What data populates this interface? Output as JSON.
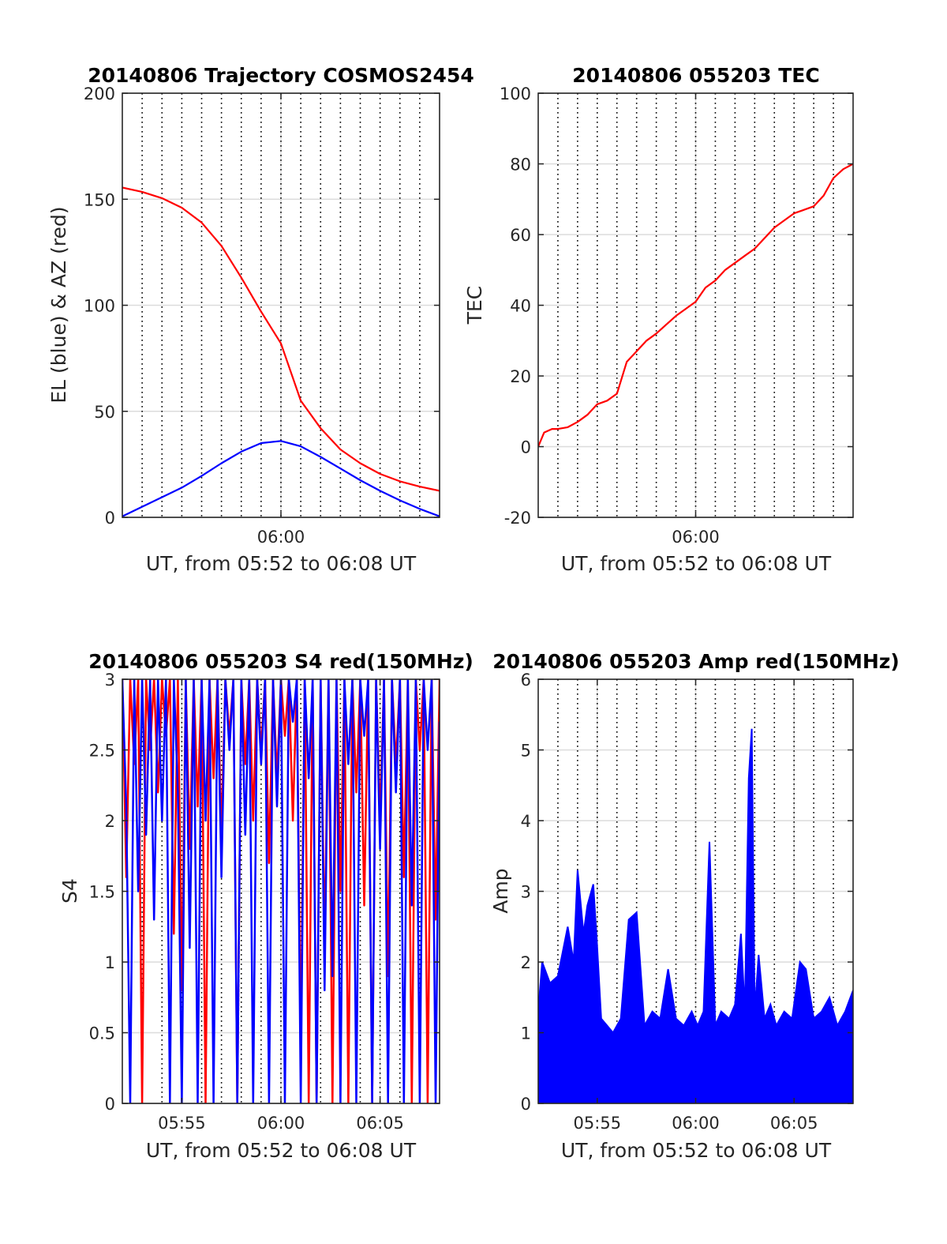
{
  "chart_data": [
    {
      "id": "trajectory",
      "type": "line",
      "title": "20140806 Trajectory COSMOS2454",
      "xlabel": "UT, from 05:52 to 06:08 UT",
      "ylabel": "EL (blue) & AZ (red)",
      "xlim": [
        352,
        368
      ],
      "ylim": [
        0,
        200
      ],
      "xticks": [
        {
          "value": 360,
          "label": "06:00"
        }
      ],
      "yticks": [
        {
          "value": 0,
          "label": "0"
        },
        {
          "value": 50,
          "label": "50"
        },
        {
          "value": 100,
          "label": "100"
        },
        {
          "value": 150,
          "label": "150"
        },
        {
          "value": 200,
          "label": "200"
        }
      ],
      "minute_gridlines": [
        353,
        354,
        355,
        356,
        357,
        358,
        359,
        360,
        361,
        362,
        363,
        364,
        365,
        366,
        367
      ],
      "grid": true,
      "series": [
        {
          "name": "AZ",
          "color": "#ff0000",
          "x": [
            352,
            353,
            354,
            355,
            356,
            357,
            358,
            359,
            360,
            361,
            362,
            363,
            364,
            365,
            366,
            367,
            368
          ],
          "values": [
            155.5,
            153.5,
            150.5,
            146,
            139,
            128,
            113,
            97,
            82,
            55,
            42,
            32,
            25.5,
            20.5,
            17,
            14.5,
            12.5
          ]
        },
        {
          "name": "EL",
          "color": "#0000ff",
          "x": [
            352,
            353,
            354,
            355,
            356,
            357,
            358,
            359,
            360,
            361,
            362,
            363,
            364,
            365,
            366,
            367,
            368
          ],
          "values": [
            0.5,
            5,
            9.5,
            14,
            19.5,
            25.5,
            31,
            35,
            36,
            33.5,
            28.5,
            23,
            17.5,
            12.5,
            8,
            4,
            0.5
          ]
        }
      ]
    },
    {
      "id": "tec",
      "type": "line",
      "title": "20140806 055203 TEC",
      "xlabel": "UT, from 05:52 to 06:08 UT",
      "ylabel": "TEC",
      "xlim": [
        352,
        368
      ],
      "ylim": [
        -20,
        100
      ],
      "xticks": [
        {
          "value": 360,
          "label": "06:00"
        }
      ],
      "yticks": [
        {
          "value": -20,
          "label": "-20"
        },
        {
          "value": 0,
          "label": "0"
        },
        {
          "value": 20,
          "label": "20"
        },
        {
          "value": 40,
          "label": "40"
        },
        {
          "value": 60,
          "label": "60"
        },
        {
          "value": 80,
          "label": "80"
        },
        {
          "value": 100,
          "label": "100"
        }
      ],
      "minute_gridlines": [
        353,
        354,
        355,
        356,
        357,
        358,
        359,
        360,
        361,
        362,
        363,
        364,
        365,
        366,
        367
      ],
      "grid": true,
      "series": [
        {
          "color": "#ff0000",
          "x": [
            352,
            352.3,
            352.7,
            353,
            353.5,
            354,
            354.5,
            355,
            355.5,
            356,
            356.5,
            357,
            357.5,
            358,
            358.5,
            359,
            359.5,
            360,
            360.5,
            361,
            361.5,
            362,
            362.5,
            363,
            363.5,
            364,
            364.5,
            365,
            365.5,
            366,
            366.5,
            367,
            367.5,
            368
          ],
          "values": [
            0,
            4,
            5,
            5,
            5.5,
            7,
            9,
            12,
            13,
            15,
            24,
            27,
            30,
            32,
            34.5,
            37,
            39,
            41,
            45,
            47,
            50,
            52,
            54,
            56,
            59,
            62,
            64,
            66,
            67,
            68,
            71,
            76,
            78.5,
            80
          ]
        }
      ]
    },
    {
      "id": "s4",
      "type": "line",
      "title": "20140806 055203 S4 red(150MHz)",
      "xlabel": "UT, from 05:52 to 06:08 UT",
      "ylabel": "S4",
      "xlim": [
        352,
        368
      ],
      "ylim": [
        0,
        3
      ],
      "xticks": [
        {
          "value": 355,
          "label": "05:55"
        },
        {
          "value": 360,
          "label": "06:00"
        },
        {
          "value": 365,
          "label": "06:05"
        }
      ],
      "yticks": [
        {
          "value": 0,
          "label": "0"
        },
        {
          "value": 0.5,
          "label": "0.5"
        },
        {
          "value": 1,
          "label": "1"
        },
        {
          "value": 1.5,
          "label": "1.5"
        },
        {
          "value": 2,
          "label": "2"
        },
        {
          "value": 2.5,
          "label": "2.5"
        },
        {
          "value": 3,
          "label": "3"
        }
      ],
      "minute_gridlines": [
        353,
        354,
        355,
        356,
        357,
        358,
        359,
        360,
        361,
        362,
        363,
        364,
        365,
        366,
        367
      ],
      "grid": true,
      "series": [
        {
          "color": "#ff0000",
          "x": [
            352,
            352.2,
            352.4,
            352.6,
            352.8,
            353.0,
            353.2,
            353.4,
            353.6,
            353.8,
            354.0,
            354.2,
            354.4,
            354.6,
            354.8,
            355.0,
            355.2,
            355.4,
            355.6,
            355.8,
            356.0,
            356.2,
            356.4,
            356.6,
            356.8,
            357.0,
            357.2,
            357.4,
            357.6,
            357.8,
            358.0,
            358.2,
            358.4,
            358.6,
            358.8,
            359.0,
            359.2,
            359.4,
            359.6,
            359.8,
            360.0,
            360.2,
            360.4,
            360.6,
            360.8,
            361.0,
            361.2,
            361.4,
            361.6,
            361.8,
            362.0,
            362.2,
            362.4,
            362.6,
            362.8,
            363.0,
            363.2,
            363.4,
            363.6,
            363.8,
            364.0,
            364.2,
            364.4,
            364.6,
            364.8,
            365.0,
            365.2,
            365.4,
            365.6,
            365.8,
            366.0,
            366.2,
            366.4,
            366.6,
            366.8,
            367.0,
            367.2,
            367.4,
            367.6,
            367.8,
            368.0
          ],
          "values": [
            3,
            1.6,
            3,
            2.4,
            3,
            0,
            3,
            2.5,
            3,
            2.2,
            3,
            2.6,
            3,
            1.2,
            3,
            0.8,
            3,
            1.8,
            3,
            2.1,
            3,
            0,
            3,
            2.3,
            3,
            1.9,
            3,
            2.6,
            3,
            0,
            3,
            2.4,
            3,
            2.0,
            3,
            2.5,
            3,
            1.7,
            3,
            2.3,
            3,
            2.6,
            3,
            2.0,
            3,
            0.4,
            3,
            0,
            3,
            0,
            3,
            1.1,
            3,
            0,
            3,
            1.5,
            3,
            0,
            3,
            2.2,
            3,
            1.4,
            3,
            0,
            3,
            2.0,
            3,
            0.9,
            3,
            2.4,
            3,
            1.6,
            3,
            0,
            3,
            2.5,
            3,
            0,
            3,
            1.3,
            3
          ]
        },
        {
          "color": "#0000ff",
          "x": [
            352,
            352.2,
            352.4,
            352.6,
            352.8,
            353.0,
            353.2,
            353.4,
            353.6,
            353.8,
            354.0,
            354.2,
            354.4,
            354.6,
            354.8,
            355.0,
            355.2,
            355.4,
            355.6,
            355.8,
            356.0,
            356.2,
            356.4,
            356.6,
            356.8,
            357.0,
            357.2,
            357.4,
            357.6,
            357.8,
            358.0,
            358.2,
            358.4,
            358.6,
            358.8,
            359.0,
            359.2,
            359.4,
            359.6,
            359.8,
            360.0,
            360.2,
            360.4,
            360.6,
            360.8,
            361.0,
            361.2,
            361.4,
            361.6,
            361.8,
            362.0,
            362.2,
            362.4,
            362.6,
            362.8,
            363.0,
            363.2,
            363.4,
            363.6,
            363.8,
            364.0,
            364.2,
            364.4,
            364.6,
            364.8,
            365.0,
            365.2,
            365.4,
            365.6,
            365.8,
            366.0,
            366.2,
            366.4,
            366.6,
            366.8,
            367.0,
            367.2,
            367.4,
            367.6,
            367.8,
            368.0
          ],
          "values": [
            3,
            2.1,
            0,
            3,
            1.5,
            3,
            1.9,
            3,
            1.3,
            3,
            2.0,
            3,
            0,
            3,
            2.2,
            0,
            3,
            1.1,
            3,
            0,
            3,
            2.0,
            3,
            0,
            3,
            1.6,
            3,
            2.5,
            3,
            0,
            3,
            1.9,
            3,
            0,
            3,
            2.4,
            3,
            0,
            3,
            2.1,
            3,
            0,
            3,
            2.7,
            3,
            0,
            3,
            2.3,
            3,
            0,
            3,
            0.8,
            3,
            0.9,
            3,
            0,
            3,
            2.4,
            3,
            0,
            3,
            2.6,
            3,
            0,
            3,
            1.8,
            3,
            0,
            3,
            2.2,
            3,
            0,
            3,
            1.4,
            3,
            0,
            3,
            2.5,
            3,
            0,
            2.7
          ]
        }
      ]
    },
    {
      "id": "amp",
      "type": "line",
      "title": "20140806 055203 Amp red(150MHz)",
      "xlabel": "UT, from 05:52 to 06:08 UT",
      "ylabel": "Amp",
      "xlim": [
        352,
        368
      ],
      "ylim": [
        0,
        6
      ],
      "xticks": [
        {
          "value": 355,
          "label": "05:55"
        },
        {
          "value": 360,
          "label": "06:00"
        },
        {
          "value": 365,
          "label": "06:05"
        }
      ],
      "yticks": [
        {
          "value": 0,
          "label": "0"
        },
        {
          "value": 1,
          "label": "1"
        },
        {
          "value": 2,
          "label": "2"
        },
        {
          "value": 3,
          "label": "3"
        },
        {
          "value": 4,
          "label": "4"
        },
        {
          "value": 5,
          "label": "5"
        },
        {
          "value": 6,
          "label": "6"
        }
      ],
      "minute_gridlines": [
        353,
        354,
        355,
        356,
        357,
        358,
        359,
        360,
        361,
        362,
        363,
        364,
        365,
        366,
        367
      ],
      "grid": true,
      "envelope": {
        "x": [
          352,
          352.2,
          352.6,
          353,
          353.5,
          353.8,
          354,
          354.3,
          354.5,
          354.8,
          355,
          355.2,
          355.5,
          355.8,
          356.2,
          356.6,
          357,
          357.4,
          357.8,
          358.2,
          358.6,
          359,
          359.4,
          359.8,
          360.1,
          360.4,
          360.7,
          361,
          361.3,
          361.7,
          362,
          362.3,
          362.5,
          362.7,
          362.85,
          363,
          363.2,
          363.5,
          363.8,
          364.1,
          364.5,
          364.9,
          365.3,
          365.6,
          366,
          366.4,
          366.8,
          367.2,
          367.6,
          368
        ],
        "values": [
          1.3,
          2.0,
          1.7,
          1.8,
          2.5,
          2.0,
          3.3,
          2.4,
          2.8,
          3.1,
          2.2,
          1.2,
          1.1,
          1.0,
          1.2,
          2.6,
          2.7,
          1.1,
          1.3,
          1.2,
          1.9,
          1.2,
          1.1,
          1.3,
          1.1,
          1.3,
          3.7,
          1.1,
          1.3,
          1.2,
          1.4,
          2.4,
          1.3,
          4.6,
          5.3,
          1.3,
          2.1,
          1.2,
          1.4,
          1.1,
          1.3,
          1.2,
          2.0,
          1.9,
          1.2,
          1.3,
          1.5,
          1.1,
          1.3,
          1.6
        ]
      },
      "floor": 0,
      "series": [
        {
          "color": "#0000ff"
        }
      ]
    }
  ]
}
